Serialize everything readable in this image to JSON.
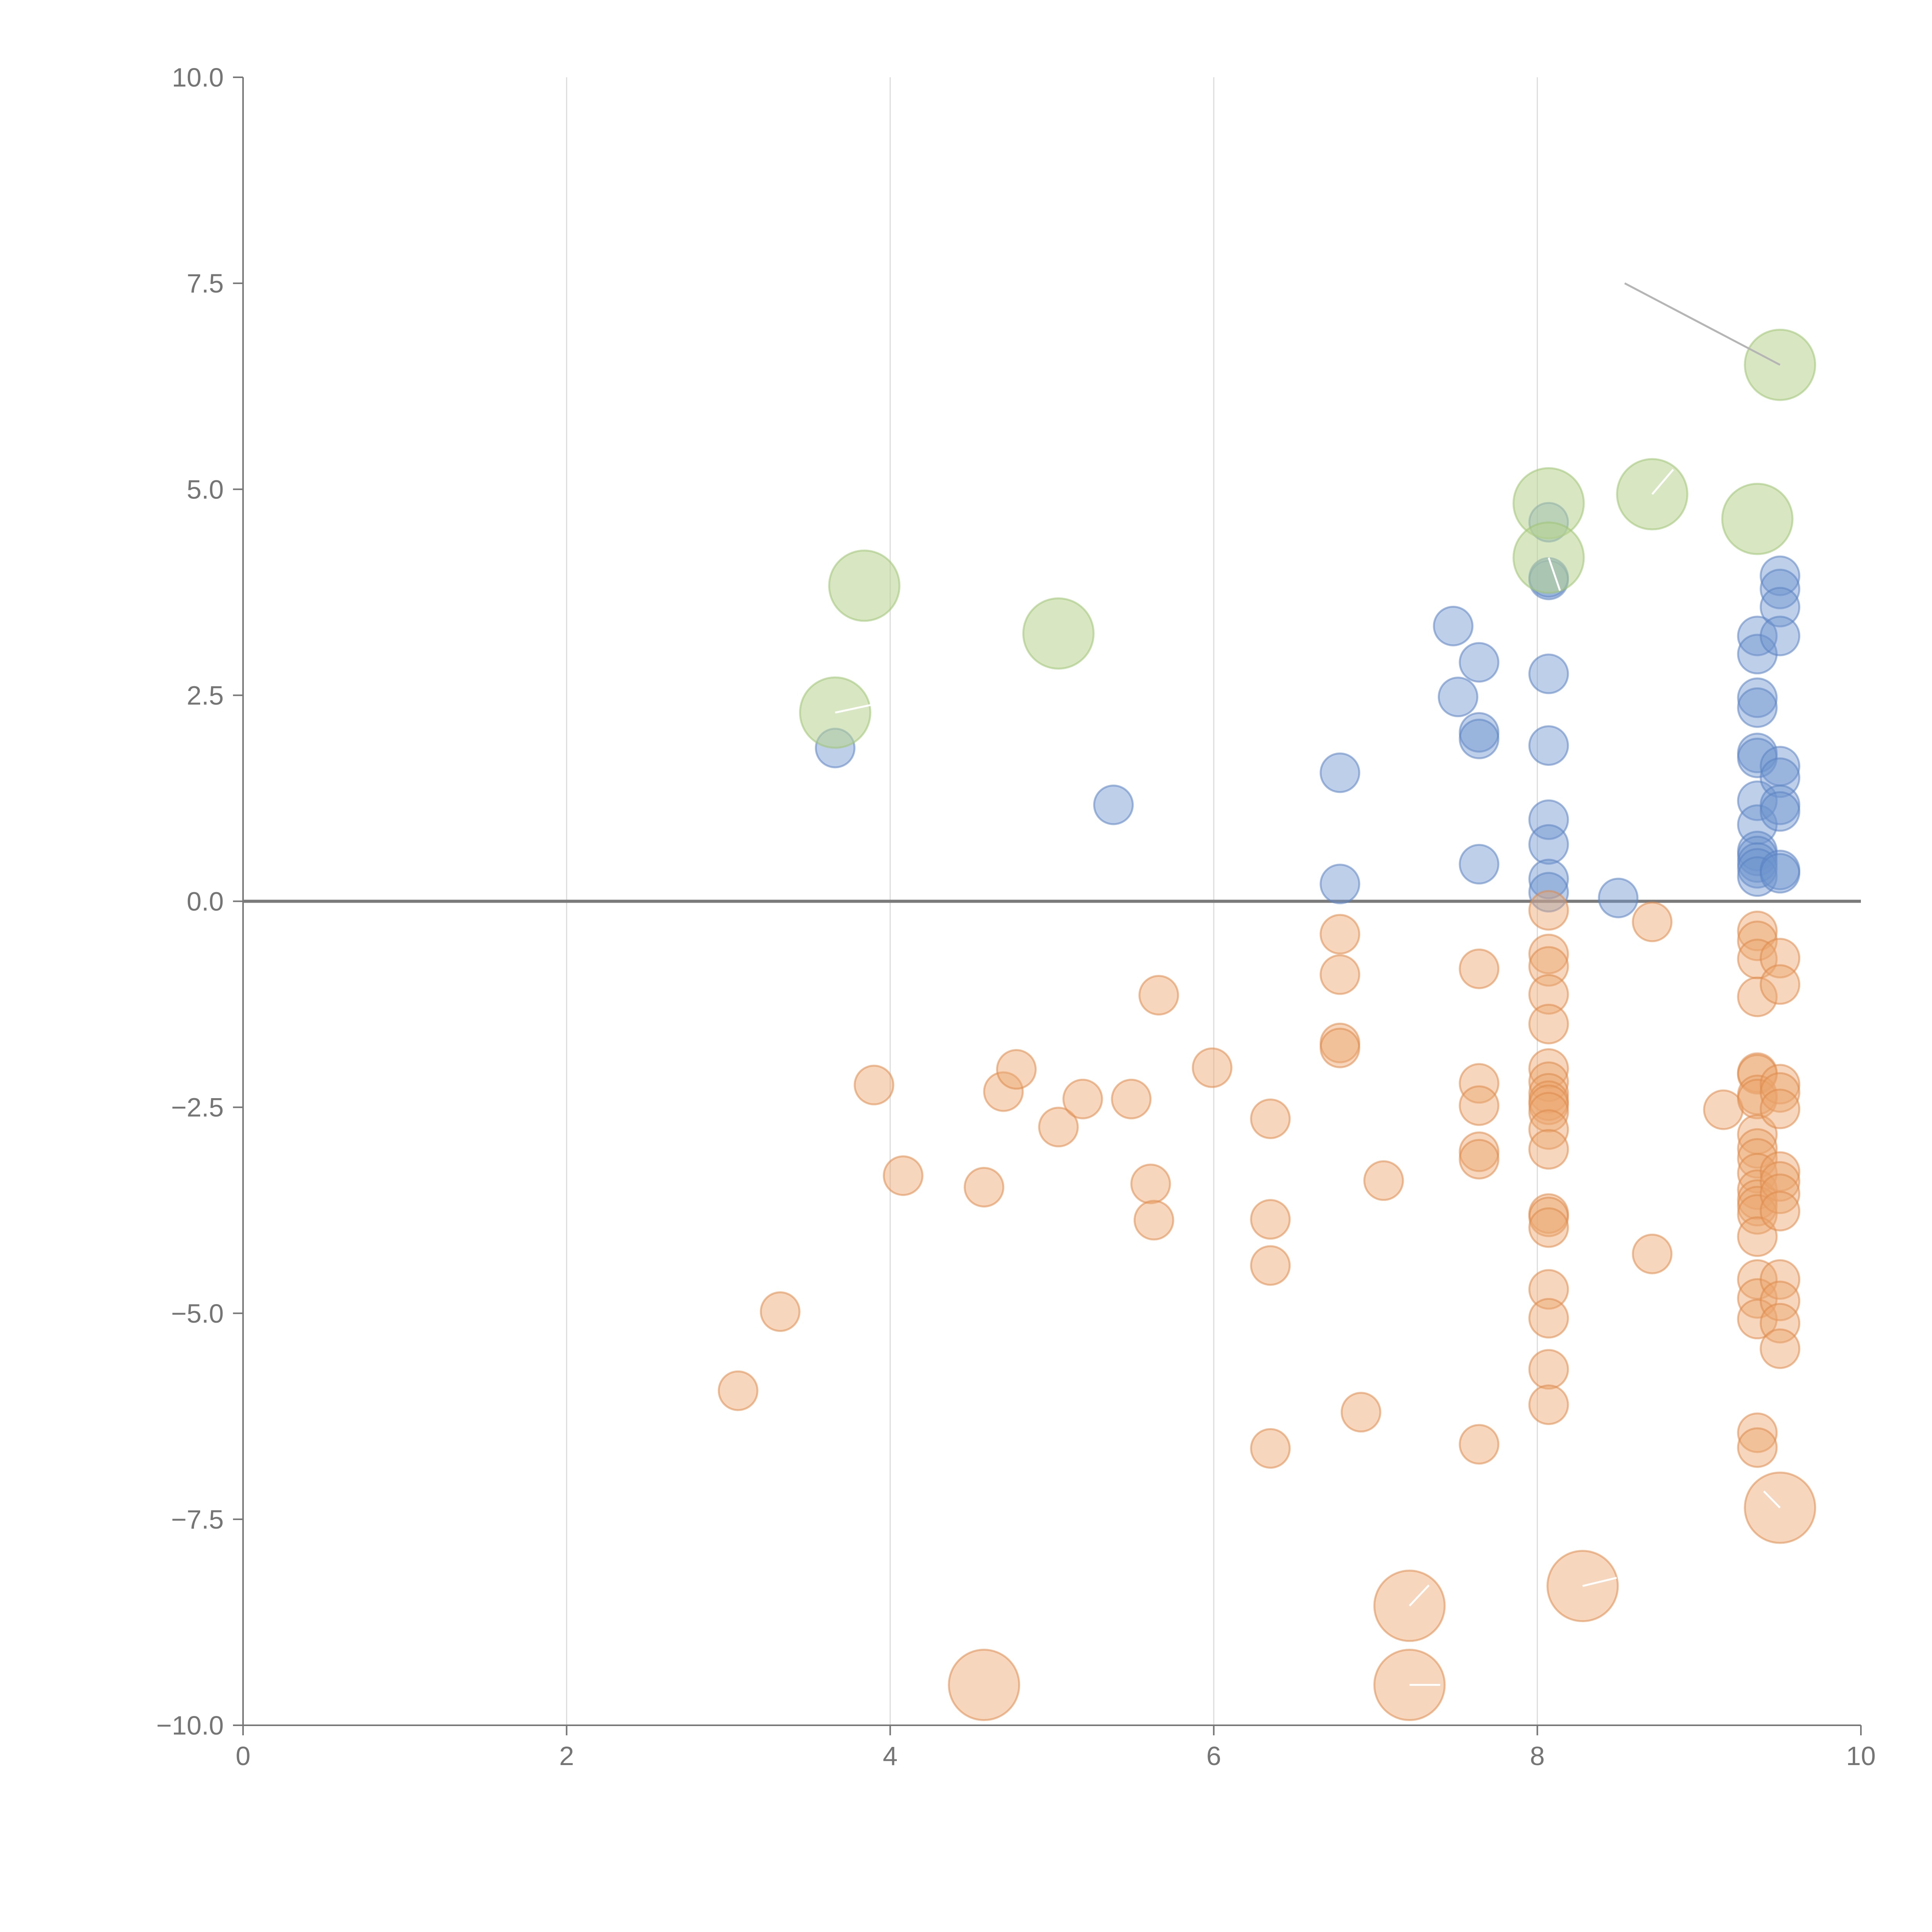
{
  "chart_data": {
    "type": "scatter",
    "title": "",
    "xlabel": "",
    "ylabel": "",
    "xlim": [
      0,
      10
    ],
    "ylim": [
      -10,
      10
    ],
    "x_ticks": [
      0,
      2,
      4,
      6,
      8,
      10
    ],
    "x_tick_labels": [
      "0",
      "2",
      "4",
      "6",
      "8",
      "10"
    ],
    "y_ticks": [
      10,
      7.5,
      5,
      2.5,
      0,
      -2.5,
      -5,
      -7.5,
      -10
    ],
    "y_tick_labels": [
      "10.0",
      "7.5",
      "5.0",
      "2.5",
      "0.0",
      "−2.5",
      "−5.0",
      "−7.5",
      "−10.0"
    ],
    "grid": "vertical",
    "series": [
      {
        "name": "positive",
        "color": "#6f95cf",
        "stroke": "#5b83c2",
        "opacity": 0.45,
        "size": 1,
        "points": [
          [
            3.66,
            1.86
          ],
          [
            5.38,
            1.17
          ],
          [
            6.78,
            1.56
          ],
          [
            6.78,
            0.21
          ],
          [
            7.48,
            3.34
          ],
          [
            7.51,
            2.48
          ],
          [
            7.64,
            2.9
          ],
          [
            7.64,
            2.05
          ],
          [
            7.64,
            1.97
          ],
          [
            7.64,
            0.45
          ],
          [
            8.07,
            4.6
          ],
          [
            8.07,
            3.9
          ],
          [
            8.07,
            3.93
          ],
          [
            8.07,
            2.76
          ],
          [
            8.07,
            1.89
          ],
          [
            8.07,
            0.99
          ],
          [
            8.07,
            0.69
          ],
          [
            8.07,
            0.27
          ],
          [
            8.07,
            0.11
          ],
          [
            8.5,
            0.04
          ],
          [
            9.36,
            3.22
          ],
          [
            9.36,
            3.0
          ],
          [
            9.36,
            2.47
          ],
          [
            9.36,
            2.35
          ],
          [
            9.36,
            1.8
          ],
          [
            9.36,
            1.74
          ],
          [
            9.36,
            1.22
          ],
          [
            9.36,
            0.93
          ],
          [
            9.36,
            0.61
          ],
          [
            9.36,
            0.55
          ],
          [
            9.36,
            0.47
          ],
          [
            9.36,
            0.4
          ],
          [
            9.36,
            0.3
          ],
          [
            9.5,
            3.95
          ],
          [
            9.5,
            3.79
          ],
          [
            9.5,
            3.57
          ],
          [
            9.5,
            3.22
          ],
          [
            9.5,
            1.64
          ],
          [
            9.5,
            1.5
          ],
          [
            9.5,
            1.17
          ],
          [
            9.5,
            1.09
          ],
          [
            9.5,
            0.38
          ],
          [
            9.5,
            0.34
          ]
        ]
      },
      {
        "name": "negative",
        "color": "#eba66f",
        "stroke": "#de8a4a",
        "opacity": 0.45,
        "size": 1,
        "points": [
          [
            3.06,
            -5.94
          ],
          [
            3.32,
            -4.98
          ],
          [
            3.9,
            -2.23
          ],
          [
            4.08,
            -3.33
          ],
          [
            4.58,
            -3.47
          ],
          [
            4.7,
            -2.31
          ],
          [
            4.78,
            -2.04
          ],
          [
            5.04,
            -2.74
          ],
          [
            5.19,
            -2.4
          ],
          [
            5.49,
            -2.4
          ],
          [
            5.61,
            -3.43
          ],
          [
            5.63,
            -3.87
          ],
          [
            5.66,
            -1.14
          ],
          [
            5.99,
            -2.02
          ],
          [
            6.35,
            -2.64
          ],
          [
            6.35,
            -3.86
          ],
          [
            6.35,
            -4.42
          ],
          [
            6.35,
            -6.64
          ],
          [
            6.78,
            -0.4
          ],
          [
            6.78,
            -0.89
          ],
          [
            6.78,
            -1.72
          ],
          [
            6.78,
            -1.78
          ],
          [
            6.91,
            -6.2
          ],
          [
            7.05,
            -3.39
          ],
          [
            7.64,
            -0.82
          ],
          [
            7.64,
            -2.21
          ],
          [
            7.64,
            -2.48
          ],
          [
            7.64,
            -3.04
          ],
          [
            7.64,
            -3.13
          ],
          [
            7.64,
            -6.59
          ],
          [
            8.07,
            -0.11
          ],
          [
            8.07,
            -0.64
          ],
          [
            8.07,
            -0.79
          ],
          [
            8.07,
            -1.13
          ],
          [
            8.07,
            -1.49
          ],
          [
            8.07,
            -2.03
          ],
          [
            8.07,
            -2.19
          ],
          [
            8.07,
            -2.33
          ],
          [
            8.07,
            -2.42
          ],
          [
            8.07,
            -2.47
          ],
          [
            8.07,
            -2.56
          ],
          [
            8.07,
            -2.77
          ],
          [
            8.07,
            -3.01
          ],
          [
            8.07,
            -3.79
          ],
          [
            8.07,
            -3.83
          ],
          [
            8.07,
            -3.96
          ],
          [
            8.07,
            -4.71
          ],
          [
            8.07,
            -5.06
          ],
          [
            8.07,
            -5.68
          ],
          [
            8.07,
            -6.11
          ],
          [
            8.71,
            -4.28
          ],
          [
            8.71,
            -0.25
          ],
          [
            9.15,
            -2.53
          ],
          [
            9.36,
            -0.36
          ],
          [
            9.36,
            -0.48
          ],
          [
            9.36,
            -0.7
          ],
          [
            9.36,
            -1.16
          ],
          [
            9.36,
            -2.08
          ],
          [
            9.36,
            -2.1
          ],
          [
            9.36,
            -2.35
          ],
          [
            9.36,
            -2.4
          ],
          [
            9.36,
            -2.83
          ],
          [
            9.36,
            -3.0
          ],
          [
            9.36,
            -3.12
          ],
          [
            9.36,
            -3.3
          ],
          [
            9.36,
            -3.5
          ],
          [
            9.36,
            -3.62
          ],
          [
            9.36,
            -3.7
          ],
          [
            9.36,
            -3.8
          ],
          [
            9.36,
            -4.07
          ],
          [
            9.36,
            -4.59
          ],
          [
            9.36,
            -4.82
          ],
          [
            9.36,
            -5.07
          ],
          [
            9.36,
            -6.45
          ],
          [
            9.36,
            -6.63
          ],
          [
            9.5,
            -0.69
          ],
          [
            9.5,
            -1.01
          ],
          [
            9.5,
            -2.22
          ],
          [
            9.5,
            -2.32
          ],
          [
            9.5,
            -2.52
          ],
          [
            9.5,
            -3.28
          ],
          [
            9.5,
            -3.4
          ],
          [
            9.5,
            -3.55
          ],
          [
            9.5,
            -3.76
          ],
          [
            9.5,
            -4.59
          ],
          [
            9.5,
            -4.85
          ],
          [
            9.5,
            -5.12
          ],
          [
            9.5,
            -5.43
          ]
        ]
      },
      {
        "name": "highlight-positive",
        "color": "#b8d48f",
        "stroke": "#9fc474",
        "opacity": 0.55,
        "size": 2,
        "points": [
          [
            3.66,
            2.29
          ],
          [
            3.84,
            3.83
          ],
          [
            5.04,
            3.25
          ],
          [
            8.07,
            4.83
          ],
          [
            8.07,
            4.17
          ],
          [
            8.71,
            4.94
          ],
          [
            9.36,
            4.64
          ],
          [
            9.5,
            6.51
          ]
        ]
      },
      {
        "name": "highlight-negative",
        "color": "#eba66f",
        "stroke": "#de8a4a",
        "opacity": 0.45,
        "size": 2,
        "points": [
          [
            4.58,
            -9.51
          ],
          [
            7.21,
            -8.55
          ],
          [
            7.21,
            -9.51
          ],
          [
            8.28,
            -8.31
          ],
          [
            9.5,
            -7.36
          ]
        ]
      }
    ],
    "annotation_leaders": [
      {
        "color": "#b5b5b5",
        "from": [
          9.5,
          6.51
        ],
        "to": [
          8.54,
          7.5
        ]
      },
      {
        "color": "#ffffff",
        "from": [
          3.66,
          2.29
        ],
        "to": [
          3.97,
          2.42
        ]
      },
      {
        "color": "#ffffff",
        "from": [
          8.71,
          4.94
        ],
        "to": [
          8.84,
          5.24
        ]
      },
      {
        "color": "#ffffff",
        "from": [
          8.07,
          4.17
        ],
        "to": [
          8.14,
          3.77
        ]
      },
      {
        "color": "#ffffff",
        "from": [
          7.21,
          -8.55
        ],
        "to": [
          7.33,
          -8.3
        ]
      },
      {
        "color": "#ffffff",
        "from": [
          7.21,
          -9.51
        ],
        "to": [
          7.4,
          -9.51
        ]
      },
      {
        "color": "#ffffff",
        "from": [
          8.28,
          -8.31
        ],
        "to": [
          8.49,
          -8.21
        ]
      },
      {
        "color": "#ffffff",
        "from": [
          9.5,
          -7.36
        ],
        "to": [
          9.4,
          -7.16
        ]
      }
    ]
  }
}
